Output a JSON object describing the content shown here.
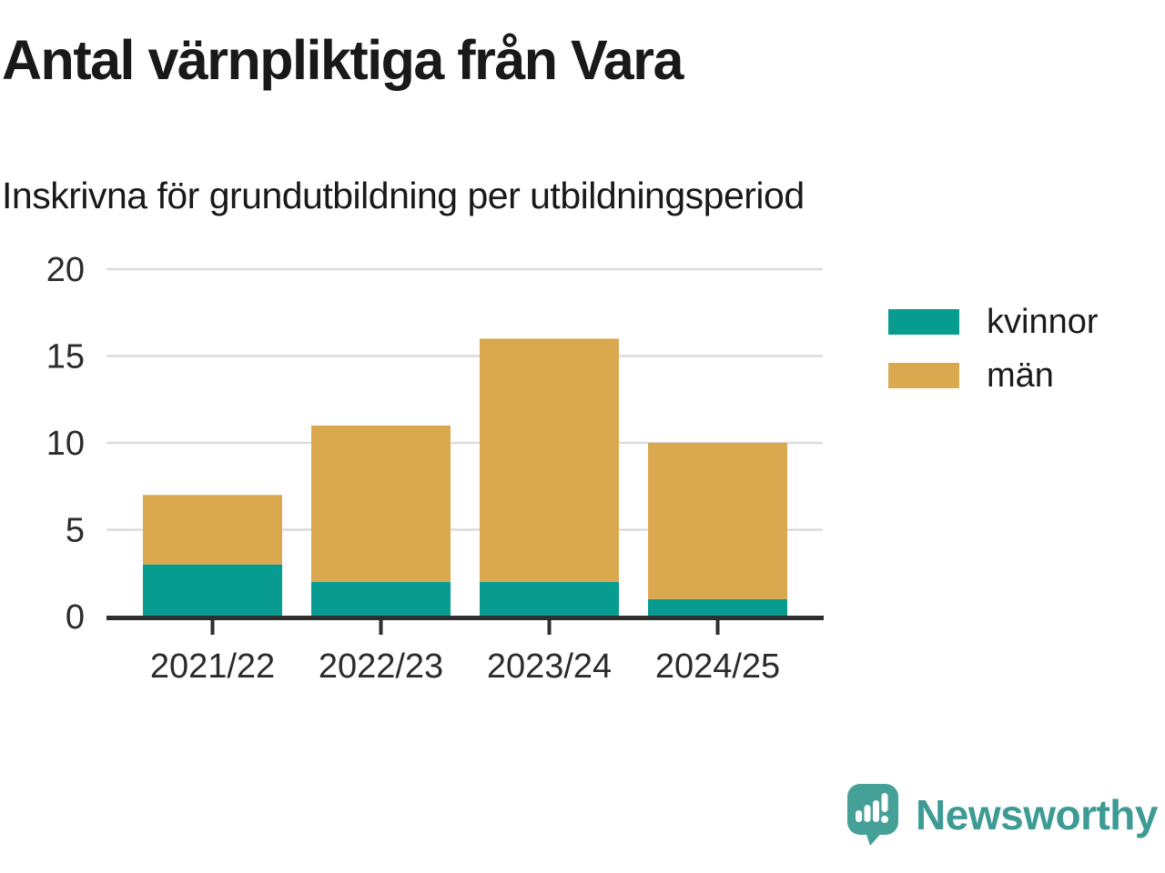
{
  "header": {
    "title": "Antal värnpliktiga från Vara",
    "subtitle": "Inskrivna för grundutbildning per utbildningsperiod"
  },
  "chart_data": {
    "type": "bar",
    "stacked": true,
    "title": "Antal värnpliktiga från Vara",
    "subtitle": "Inskrivna för grundutbildning per utbildningsperiod",
    "categories": [
      "2021/22",
      "2022/23",
      "2023/24",
      "2024/25"
    ],
    "series": [
      {
        "name": "kvinnor",
        "color": "#089c90",
        "values": [
          3,
          2,
          2,
          1
        ]
      },
      {
        "name": "män",
        "color": "#d9a84f",
        "values": [
          4,
          9,
          14,
          9
        ]
      }
    ],
    "totals": [
      7,
      11,
      16,
      10
    ],
    "xlabel": "",
    "ylabel": "",
    "ylim": [
      0,
      20
    ],
    "yticks": [
      0,
      5,
      10,
      15,
      20
    ],
    "grid": "horizontal",
    "legend_position": "right",
    "colors": {
      "grid": "#dcdcdc",
      "axis": "#2e2e2e",
      "tick_text": "#2b2b2b"
    }
  },
  "legend": {
    "items": [
      {
        "label": "kvinnor"
      },
      {
        "label": "män"
      }
    ]
  },
  "footer": {
    "brand": "Newsworthy",
    "brand_color": "#3d9b94",
    "logo_color": "#45a098"
  }
}
